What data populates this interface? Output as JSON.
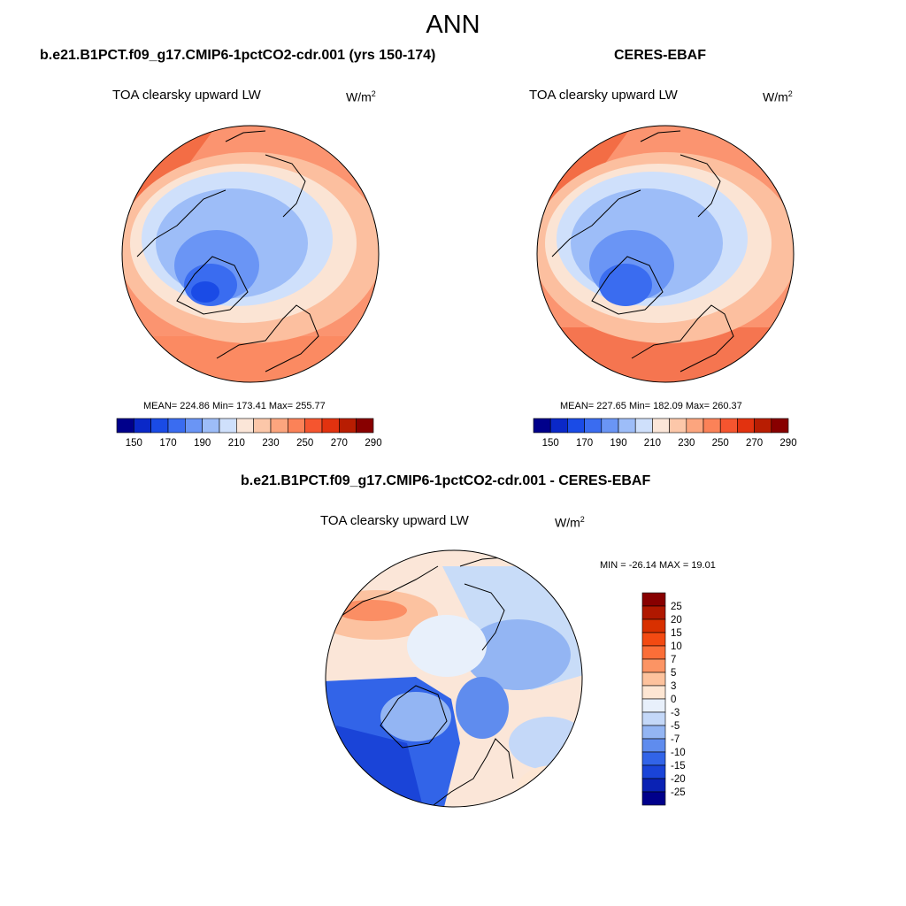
{
  "figure": {
    "title": "ANN",
    "units_base": "W/m",
    "units_exp": "2"
  },
  "panels": [
    {
      "title": "b.e21.B1PCT.f09_g17.CMIP6-1pctCO2-cdr.001 (yrs 150-174)",
      "variable": "TOA clearsky upward LW",
      "stats": "MEAN= 224.86  Min= 173.41  Max= 255.77",
      "colorbar": {
        "tick_labels": [
          "150",
          "170",
          "190",
          "210",
          "230",
          "250",
          "270",
          "290"
        ],
        "colors": [
          "#00008b",
          "#0a28c8",
          "#1a4be6",
          "#3a6cf0",
          "#6a95f5",
          "#9dbdf8",
          "#cfe0fb",
          "#fbe6d8",
          "#fcc7a9",
          "#fca57e",
          "#fb8258",
          "#f5552f",
          "#e2320f",
          "#b81d02",
          "#880000"
        ]
      }
    },
    {
      "title": "CERES-EBAF",
      "variable": "TOA clearsky upward LW",
      "stats": "MEAN= 227.65  Min= 182.09  Max= 260.37",
      "colorbar": {
        "tick_labels": [
          "150",
          "170",
          "190",
          "210",
          "230",
          "250",
          "270",
          "290"
        ],
        "colors": [
          "#00008b",
          "#0a28c8",
          "#1a4be6",
          "#3a6cf0",
          "#6a95f5",
          "#9dbdf8",
          "#cfe0fb",
          "#fbe6d8",
          "#fcc7a9",
          "#fca57e",
          "#fb8258",
          "#f5552f",
          "#e2320f",
          "#b81d02",
          "#880000"
        ]
      }
    },
    {
      "title": "b.e21.B1PCT.f09_g17.CMIP6-1pctCO2-cdr.001 - CERES-EBAF",
      "variable": "TOA clearsky upward LW",
      "stats": "MIN = -26.14 MAX =  19.01",
      "colorbar": {
        "tick_labels": [
          "25",
          "20",
          "15",
          "10",
          "7",
          "5",
          "3",
          "0",
          "-3",
          "-5",
          "-7",
          "-10",
          "-15",
          "-20",
          "-25"
        ],
        "colors": [
          "#880000",
          "#b01800",
          "#d83000",
          "#f34a12",
          "#fb6e38",
          "#fc9464",
          "#fdc29d",
          "#fde6d3",
          "#e8f0fb",
          "#c4d8f8",
          "#93b5f3",
          "#5f8cee",
          "#3264e8",
          "#1a44d8",
          "#0a22b4",
          "#00008b"
        ]
      }
    }
  ],
  "colors": {
    "land_outline": "#000000",
    "globe_border": "#000000"
  }
}
